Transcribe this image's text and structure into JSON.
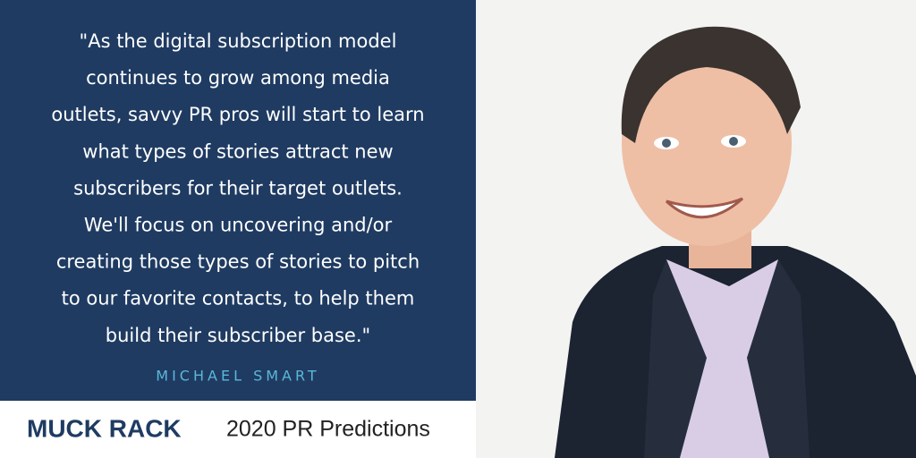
{
  "quote": {
    "lines": [
      "\"As the digital subscription model",
      "continues to grow among media",
      "outlets, savvy PR pros will start to learn",
      "what types of stories attract new",
      "subscribers for their target outlets.",
      "We'll focus on uncovering and/or",
      "creating those types of stories to pitch",
      "to our favorite contacts, to help them",
      "build their subscriber base.\""
    ],
    "author": "MICHAEL SMART"
  },
  "footer": {
    "brand": "MUCK RACK",
    "title": "2020 PR Predictions"
  }
}
